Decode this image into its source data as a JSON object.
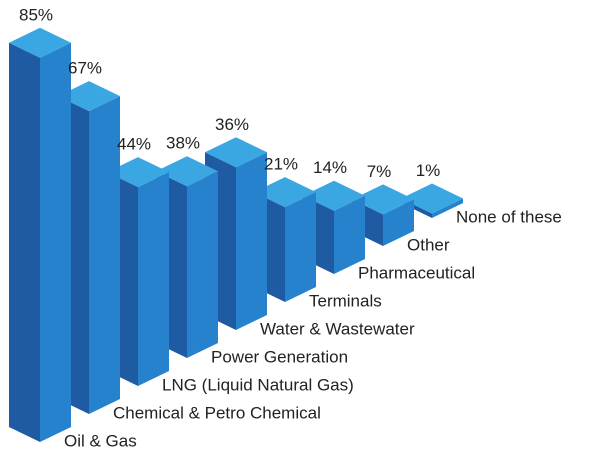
{
  "chart_data": {
    "type": "bar3d",
    "categories": [
      "Oil & Gas",
      "Chemical & Petro Chemical",
      "LNG (Liquid Natural Gas)",
      "Power Generation",
      "Water & Wastewater",
      "Terminals",
      "Pharmaceutical",
      "Other",
      "None of these"
    ],
    "values": [
      85,
      67,
      44,
      38,
      36,
      21,
      14,
      7,
      1
    ],
    "value_labels": [
      "85%",
      "67%",
      "44%",
      "38%",
      "36%",
      "21%",
      "14%",
      "7%",
      "1%"
    ],
    "colors": {
      "left": "#1f5ba3",
      "right": "#2682cc",
      "top": "#3aa6e2"
    }
  }
}
